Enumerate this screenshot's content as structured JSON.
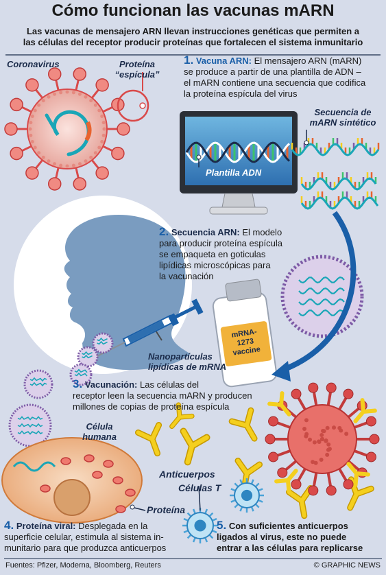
{
  "title": "Cómo funcionan las vacunas mARN",
  "subtitle_line1": "Las vacunas de mensajero ARN llevan instrucciones genéticas que permiten a",
  "subtitle_line2": "las células del receptor producir proteínas que fortalecen el sistema inmunitario",
  "labels": {
    "coronavirus": "Coronavirus",
    "protein_line1": "Proteína",
    "protein_line2": "“espícula”",
    "synthetic_line1": "Secuencia de",
    "synthetic_line2": "mARN sintético",
    "dna_template": "Plantilla ADN",
    "nanoparticles_line1": "Nanopartículas",
    "nanoparticles_line2": "lipídicas de mRNA",
    "cell_line1": "Célula",
    "cell_line2": "humana",
    "antibodies": "Anticuerpos",
    "t_cells": "Células T",
    "protein": "Proteína",
    "vial_line1": "mRNA-",
    "vial_line2": "1273",
    "vial_line3": "vaccine"
  },
  "steps": {
    "s1": {
      "num": "1.",
      "head": "Vacuna ARN:",
      "line1": " El mensajero ARN (mARN)",
      "line2": "se produce a partir de una plantilla de ADN –",
      "line3": "el mARN contiene una secuencia que codifica",
      "line4": "la proteína espícula del virus"
    },
    "s2": {
      "num": "2.",
      "head": "Secuencia ARN:",
      "line1": " El modelo",
      "line2": "para producir proteína espícula",
      "line3": "se empaqueta en goticulas",
      "line4": "lipídicas microscópicas para",
      "line5": "la vacunación"
    },
    "s3": {
      "num": "3.",
      "head": "Vacunación:",
      "line1": " Las células del",
      "line2": "receptor leen la secuencia mARN y producen",
      "line3": "millones de copias de proteína espícula"
    },
    "s4": {
      "num": "4.",
      "head": "Proteína viral:",
      "line1": " Desplegada en la",
      "line2": "superficie celular, estimula al sistema in-",
      "line3": "munitario para que produzca anticuerpos"
    },
    "s5": {
      "num": "5.",
      "line1": "Con suficientes anticuerpos",
      "line2": "ligados al virus, este no puede",
      "line3": "entrar a las células para replicarse"
    }
  },
  "footer": {
    "sources": "Fuentes: Pfizer, Moderna, Bloomberg, Reuters",
    "credit": "© GRAPHIC NEWS"
  },
  "colors": {
    "background": "#d6dcea",
    "accent_blue": "#1a5fa8",
    "virus_red": "#d94a4a",
    "virus_fill": "#f2c6c0",
    "lipid_purple": "#7d5ba6",
    "rna_teal": "#1aa6b7",
    "antibody_yellow": "#f4cf1e",
    "cell_orange": "#f3c6a0",
    "silhouette": "#7a9cc0"
  }
}
